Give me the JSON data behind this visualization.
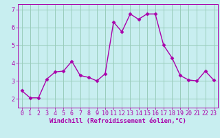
{
  "x": [
    0,
    1,
    2,
    3,
    4,
    5,
    6,
    7,
    8,
    9,
    10,
    11,
    12,
    13,
    14,
    15,
    16,
    17,
    18,
    19,
    20,
    21,
    22,
    23
  ],
  "y": [
    2.45,
    2.05,
    2.05,
    3.1,
    3.5,
    3.55,
    4.1,
    3.3,
    3.2,
    3.0,
    3.4,
    6.3,
    5.75,
    6.75,
    6.45,
    6.75,
    6.75,
    5.0,
    4.3,
    3.3,
    3.05,
    3.0,
    3.55,
    3.05
  ],
  "line_color": "#aa00aa",
  "marker": "D",
  "marker_size": 2.5,
  "bg_color": "#c8eef0",
  "grid_color": "#99ccbb",
  "xlabel": "Windchill (Refroidissement éolien,°C)",
  "xlabel_color": "#aa00aa",
  "tick_color": "#aa00aa",
  "ylim": [
    1.5,
    7.3
  ],
  "xlim": [
    -0.5,
    23.5
  ],
  "yticks": [
    2,
    3,
    4,
    5,
    6,
    7
  ],
  "xticks": [
    0,
    1,
    2,
    3,
    4,
    5,
    6,
    7,
    8,
    9,
    10,
    11,
    12,
    13,
    14,
    15,
    16,
    17,
    18,
    19,
    20,
    21,
    22,
    23
  ],
  "line_width": 1.0,
  "tick_fontsize": 6.0,
  "xlabel_fontsize": 6.5
}
